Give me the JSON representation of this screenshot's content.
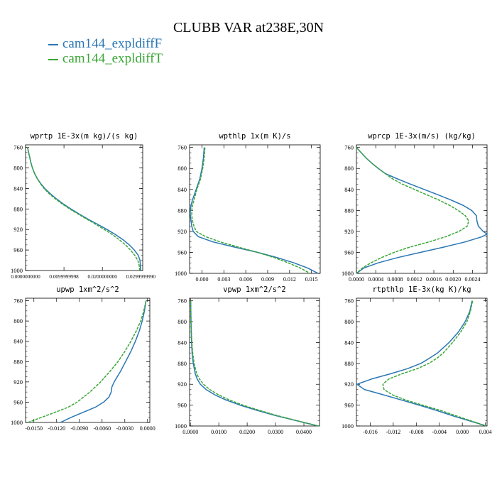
{
  "figure_title": "CLUBB VAR at238E,30N",
  "legend": [
    {
      "label": "cam144_expldiffF",
      "color": "#2a77b4"
    },
    {
      "label": "cam144_expldiffT",
      "color": "#3aa637"
    }
  ],
  "chart_data": [
    {
      "type": "line",
      "title": "wprtp  1E-3x(m kg)/(s kg)",
      "xlim": [
        0.0,
        0.0305
      ],
      "ylim": [
        1000,
        755
      ],
      "xticks": [
        0.0,
        0.01,
        0.02,
        0.03
      ],
      "xtick_labels": [
        "0.0000000000",
        "0.0099999998",
        "0.0200000000",
        "0.0299999990"
      ],
      "yticks": [
        760,
        800,
        840,
        880,
        920,
        960,
        1000
      ],
      "series": [
        {
          "name": "cam144_expldiffF",
          "y": [
            760,
            770,
            780,
            790,
            800,
            810,
            820,
            830,
            840,
            850,
            860,
            870,
            880,
            890,
            900,
            910,
            920,
            930,
            940,
            950,
            960,
            970,
            980,
            990,
            1000
          ],
          "x": [
            0.0005,
            0.0008,
            0.0011,
            0.0014,
            0.0018,
            0.0023,
            0.003,
            0.0039,
            0.005,
            0.0064,
            0.008,
            0.0098,
            0.0118,
            0.014,
            0.0163,
            0.0188,
            0.0212,
            0.0234,
            0.0254,
            0.027,
            0.0283,
            0.0293,
            0.0298,
            0.0299,
            0.0299
          ]
        },
        {
          "name": "cam144_expldiffT",
          "y": [
            760,
            770,
            780,
            790,
            800,
            810,
            820,
            830,
            840,
            850,
            860,
            870,
            880,
            890,
            900,
            910,
            920,
            930,
            940,
            950,
            960,
            970,
            980,
            990,
            1000
          ],
          "x": [
            0.0005,
            0.0008,
            0.0011,
            0.0014,
            0.0018,
            0.0023,
            0.003,
            0.0038,
            0.0048,
            0.0061,
            0.0077,
            0.0095,
            0.0115,
            0.0137,
            0.016,
            0.0183,
            0.0205,
            0.0226,
            0.0244,
            0.026,
            0.0273,
            0.0284,
            0.0292,
            0.0296,
            0.0297
          ]
        }
      ]
    },
    {
      "type": "line",
      "title": "wpthlp  1x(m K)/s",
      "xlim": [
        -0.0017,
        0.0162
      ],
      "ylim": [
        1000,
        755
      ],
      "xticks": [
        0.0,
        0.003,
        0.006,
        0.009,
        0.012,
        0.015
      ],
      "xtick_labels": [
        "0.000",
        "0.003",
        "0.006",
        "0.009",
        "0.012",
        "0.015"
      ],
      "yticks": [
        760,
        800,
        840,
        880,
        920,
        960,
        1000
      ],
      "series": [
        {
          "name": "cam144_expldiffF",
          "y": [
            760,
            780,
            800,
            820,
            840,
            860,
            870,
            880,
            890,
            900,
            910,
            920,
            930,
            940,
            950,
            960,
            970,
            980,
            990,
            1000
          ],
          "x": [
            0.0003,
            0.0002,
            0.0,
            -0.0003,
            -0.0008,
            -0.0013,
            -0.0015,
            -0.0016,
            -0.0016,
            -0.0015,
            -0.0014,
            -0.0012,
            -0.0005,
            0.0015,
            0.0045,
            0.0076,
            0.0103,
            0.0126,
            0.0145,
            0.0159
          ]
        },
        {
          "name": "cam144_expldiffT",
          "y": [
            760,
            780,
            800,
            820,
            840,
            860,
            870,
            880,
            890,
            900,
            910,
            920,
            930,
            940,
            950,
            960,
            970,
            980,
            990,
            1000
          ],
          "x": [
            0.0004,
            0.0003,
            0.0001,
            -0.0002,
            -0.0007,
            -0.0011,
            -0.0013,
            -0.0014,
            -0.0014,
            -0.0013,
            -0.0011,
            -0.0008,
            0.0005,
            0.0025,
            0.005,
            0.0076,
            0.0099,
            0.0118,
            0.0135,
            0.0148
          ]
        }
      ]
    },
    {
      "type": "line",
      "title": "wprcp  1E-3x(m/s) (kg/kg)",
      "xlim": [
        0.0,
        0.0027
      ],
      "ylim": [
        1000,
        755
      ],
      "xticks": [
        0.0,
        0.0004,
        0.0008,
        0.0012,
        0.0016,
        0.002,
        0.0024
      ],
      "xtick_labels": [
        "0.0000",
        "0.0004",
        "0.0008",
        "0.0012",
        "0.0016",
        "0.0020",
        "0.0024"
      ],
      "yticks": [
        760,
        800,
        840,
        880,
        920,
        960,
        1000
      ],
      "series": [
        {
          "name": "cam144_expldiffF",
          "y": [
            760,
            770,
            780,
            790,
            800,
            810,
            820,
            830,
            840,
            850,
            860,
            870,
            880,
            890,
            900,
            910,
            920,
            925,
            930,
            940,
            950,
            960,
            970,
            980,
            990,
            1000
          ],
          "x": [
            0.0,
            0.0001,
            0.0002,
            0.00032,
            0.00045,
            0.0006,
            0.00085,
            0.00112,
            0.0014,
            0.00168,
            0.00195,
            0.0022,
            0.00238,
            0.00248,
            0.00249,
            0.00252,
            0.00262,
            0.0027,
            0.0026,
            0.00225,
            0.0018,
            0.00133,
            0.00085,
            0.00045,
            0.00015,
            0.0
          ]
        },
        {
          "name": "cam144_expldiffT",
          "y": [
            760,
            770,
            780,
            790,
            800,
            810,
            820,
            830,
            840,
            850,
            860,
            870,
            880,
            890,
            900,
            910,
            920,
            930,
            940,
            950,
            960,
            970,
            980,
            990,
            1000
          ],
          "x": [
            0.0,
            0.0001,
            0.0002,
            0.00032,
            0.00045,
            0.0006,
            0.00075,
            0.00095,
            0.0012,
            0.00145,
            0.0017,
            0.00192,
            0.0021,
            0.00225,
            0.00232,
            0.00229,
            0.00212,
            0.00185,
            0.0015,
            0.0011,
            0.00078,
            0.00052,
            0.0003,
            0.00012,
            0.0
          ]
        }
      ]
    },
    {
      "type": "line",
      "title": "upwp  1xm^2/s^2",
      "xlim": [
        -0.0161,
        0.0003
      ],
      "ylim": [
        1000,
        755
      ],
      "xticks": [
        -0.015,
        -0.012,
        -0.009,
        -0.006,
        -0.003,
        0.0
      ],
      "xtick_labels": [
        "-0.0150",
        "-0.0120",
        "-0.0090",
        "-0.0060",
        "-0.0030",
        "0.0000"
      ],
      "yticks": [
        760,
        800,
        840,
        880,
        920,
        960,
        1000
      ],
      "series": [
        {
          "name": "cam144_expldiffF",
          "y": [
            760,
            780,
            800,
            820,
            840,
            860,
            880,
            900,
            910,
            920,
            930,
            940,
            950,
            960,
            970,
            980,
            990,
            1000
          ],
          "x": [
            -0.0002,
            -0.0004,
            -0.0007,
            -0.0011,
            -0.0016,
            -0.0022,
            -0.0029,
            -0.0036,
            -0.004,
            -0.0044,
            -0.0047,
            -0.0048,
            -0.0051,
            -0.0058,
            -0.0069,
            -0.0085,
            -0.0101,
            -0.0115
          ]
        },
        {
          "name": "cam144_expldiffT",
          "y": [
            760,
            780,
            800,
            820,
            840,
            860,
            880,
            900,
            920,
            940,
            960,
            970,
            980,
            990,
            1000
          ],
          "x": [
            -0.0002,
            -0.0005,
            -0.0009,
            -0.0015,
            -0.0022,
            -0.003,
            -0.0039,
            -0.005,
            -0.0062,
            -0.0076,
            -0.0093,
            -0.0105,
            -0.0122,
            -0.014,
            -0.0158
          ]
        }
      ]
    },
    {
      "type": "line",
      "title": "vpwp  1xm^2/s^2",
      "xlim": [
        -0.0003,
        0.0455
      ],
      "ylim": [
        1000,
        755
      ],
      "xticks": [
        0.0,
        0.01,
        0.02,
        0.03,
        0.04
      ],
      "xtick_labels": [
        "0.0000",
        "0.0100",
        "0.0200",
        "0.0300",
        "0.0400"
      ],
      "yticks": [
        760,
        800,
        840,
        880,
        920,
        960,
        1000
      ],
      "series": [
        {
          "name": "cam144_expldiffF",
          "y": [
            760,
            800,
            840,
            860,
            880,
            900,
            910,
            920,
            930,
            940,
            950,
            960,
            970,
            980,
            990,
            1000
          ],
          "x": [
            0.0001,
            0.0002,
            0.0004,
            0.0006,
            0.001,
            0.0017,
            0.0024,
            0.0035,
            0.0055,
            0.0085,
            0.0125,
            0.0175,
            0.0235,
            0.03,
            0.0375,
            0.045
          ]
        },
        {
          "name": "cam144_expldiffT",
          "y": [
            760,
            800,
            840,
            860,
            880,
            900,
            910,
            920,
            930,
            940,
            950,
            960,
            970,
            980,
            990,
            1000
          ],
          "x": [
            0.0001,
            0.0002,
            0.0005,
            0.0008,
            0.0013,
            0.0022,
            0.0032,
            0.0046,
            0.0068,
            0.0098,
            0.0137,
            0.0185,
            0.0243,
            0.0305,
            0.0378,
            0.0452
          ]
        }
      ]
    },
    {
      "type": "line",
      "title": "rtpthlp  1E-3x(kg K)/kg",
      "xlim": [
        -0.0184,
        0.0043
      ],
      "ylim": [
        1000,
        755
      ],
      "xticks": [
        -0.016,
        -0.012,
        -0.008,
        -0.004,
        0.0,
        0.004
      ],
      "xtick_labels": [
        "-0.016",
        "-0.012",
        "-0.008",
        "-0.004",
        "0.000",
        "0.004"
      ],
      "yticks": [
        760,
        800,
        840,
        880,
        920,
        960,
        1000
      ],
      "series": [
        {
          "name": "cam144_expldiffF",
          "y": [
            760,
            780,
            800,
            820,
            840,
            860,
            870,
            880,
            890,
            900,
            910,
            920,
            930,
            940,
            950,
            960,
            970,
            980,
            990,
            1000
          ],
          "x": [
            0.0017,
            0.0013,
            0.0005,
            -0.0007,
            -0.0023,
            -0.0043,
            -0.0057,
            -0.0072,
            -0.0095,
            -0.0125,
            -0.0158,
            -0.0183,
            -0.017,
            -0.0138,
            -0.0106,
            -0.0075,
            -0.0045,
            -0.0018,
            0.0012,
            0.0042
          ]
        },
        {
          "name": "cam144_expldiffT",
          "y": [
            760,
            780,
            800,
            820,
            840,
            860,
            870,
            880,
            890,
            900,
            910,
            920,
            930,
            940,
            950,
            960,
            970,
            980,
            990,
            1000
          ],
          "x": [
            0.0018,
            0.0014,
            0.0008,
            -0.0003,
            -0.0017,
            -0.0033,
            -0.0044,
            -0.0058,
            -0.0078,
            -0.0105,
            -0.0128,
            -0.0138,
            -0.0136,
            -0.0122,
            -0.0099,
            -0.0069,
            -0.0038,
            -0.0012,
            0.0015,
            0.0042
          ]
        }
      ]
    }
  ]
}
